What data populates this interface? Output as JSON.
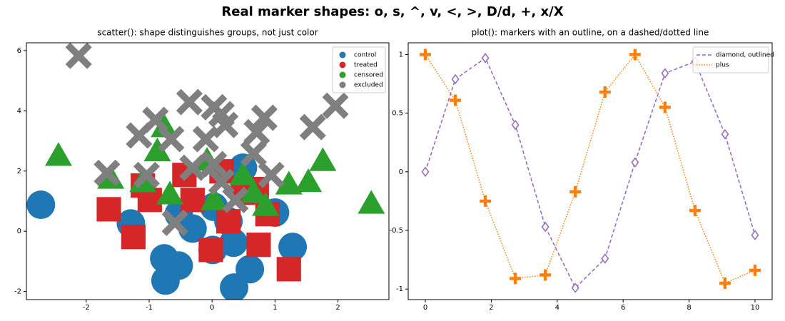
{
  "title": "Real marker shapes: o, s, ^, v, <, >, D/d, +, x/X",
  "chart_data": [
    {
      "type": "scatter",
      "title": "scatter(): shape distinguishes groups, not just color",
      "xlim": [
        -2.95,
        2.81
      ],
      "ylim": [
        -2.27,
        6.26
      ],
      "xticks": [
        -2,
        -1,
        0,
        1,
        2
      ],
      "yticks": [
        -2,
        0,
        2,
        4,
        6
      ],
      "legend": "upper right",
      "series": [
        {
          "name": "control",
          "color": "#1f77b4",
          "marker": "o",
          "x": [
            -2.72,
            -1.29,
            -0.76,
            -0.53,
            -0.74,
            0.01,
            0.34,
            0.6,
            0.35,
            1.0,
            1.28,
            -0.31,
            0.49,
            0.03,
            -0.53,
            0.26
          ],
          "y": [
            0.88,
            0.26,
            -0.9,
            -1.14,
            -1.64,
            -0.62,
            -0.38,
            -1.26,
            -1.87,
            0.62,
            -0.52,
            0.09,
            2.11,
            0.81,
            0.57,
            0.33
          ]
        },
        {
          "name": "treated",
          "color": "#d62728",
          "marker": "s",
          "x": [
            -1.64,
            -1.25,
            -1.1,
            -0.99,
            -0.44,
            -0.31,
            -0.02,
            0.26,
            0.74,
            1.22,
            0.88,
            0.15,
            0.49,
            0.71
          ],
          "y": [
            0.73,
            -0.19,
            1.52,
            1.04,
            1.87,
            1.04,
            -0.62,
            0.33,
            -0.45,
            -1.26,
            0.57,
            1.99,
            1.28,
            1.4
          ]
        },
        {
          "name": "censored",
          "color": "#2ca02c",
          "marker": "^",
          "x": [
            -2.44,
            2.53,
            1.76,
            1.53,
            1.22,
            0.85,
            0.66,
            -0.67,
            -0.87,
            -0.76,
            -0.08,
            0.49,
            0.03,
            -1.61,
            -1.1
          ],
          "y": [
            2.51,
            0.92,
            2.34,
            1.64,
            1.56,
            0.85,
            1.28,
            1.23,
            2.66,
            3.46,
            2.35,
            1.87,
            1.04,
            1.75,
            1.64
          ]
        },
        {
          "name": "excluded",
          "color": "#7f7f7f",
          "marker": "X",
          "x": [
            -2.12,
            -1.67,
            -1.16,
            -0.9,
            -1.04,
            -0.59,
            -0.65,
            -0.36,
            0.03,
            0.15,
            -0.1,
            0.21,
            0.71,
            0.83,
            1.6,
            1.96,
            0.03,
            0.15,
            -0.31,
            0.94,
            0.66,
            0.37
          ],
          "y": [
            5.83,
            1.94,
            3.18,
            3.7,
            1.87,
            0.28,
            3.06,
            4.29,
            4.12,
            3.89,
            3.06,
            3.53,
            3.29,
            3.77,
            3.46,
            4.17,
            2.23,
            1.64,
            2.11,
            1.87,
            2.58,
            1.04
          ]
        }
      ]
    },
    {
      "type": "line",
      "title": "plot(): markers with an outline, on a dashed/dotted line",
      "xlim": [
        -0.52,
        10.52
      ],
      "ylim": [
        -1.09,
        1.1
      ],
      "xticks": [
        0,
        2,
        4,
        6,
        8,
        10
      ],
      "yticks": [
        -1,
        -0.5,
        0,
        0.5,
        1
      ],
      "legend": "upper right",
      "x": [
        0,
        0.91,
        1.82,
        2.73,
        3.64,
        4.55,
        5.45,
        6.36,
        7.27,
        8.18,
        9.09,
        10
      ],
      "series": [
        {
          "name": "diamond, outlined",
          "color": "#9467bd",
          "marker": "D",
          "linestyle": "dashed",
          "values": [
            0,
            0.79,
            0.97,
            0.4,
            -0.47,
            -0.99,
            -0.74,
            0.08,
            0.84,
            0.94,
            0.32,
            -0.54
          ]
        },
        {
          "name": "plus",
          "color": "#ff7f0e",
          "marker": "P",
          "linestyle": "dotted",
          "values": [
            1,
            0.61,
            -0.25,
            -0.91,
            -0.88,
            -0.17,
            0.68,
            1.0,
            0.55,
            -0.33,
            -0.95,
            -0.84
          ]
        }
      ]
    }
  ]
}
